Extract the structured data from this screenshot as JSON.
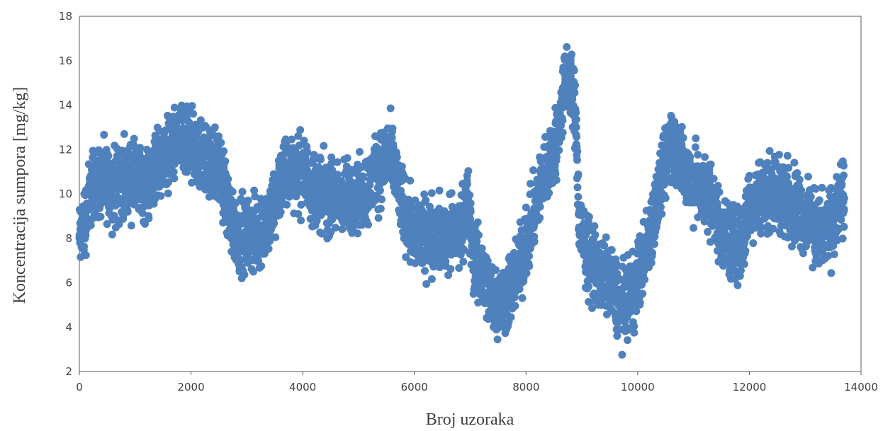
{
  "chart_data": {
    "type": "scatter",
    "title": "",
    "xlabel": "Broj uzoraka",
    "ylabel": "Koncentracija sumpora [mg/kg]",
    "xlim": [
      0,
      14000
    ],
    "ylim": [
      2,
      18
    ],
    "xticks": [
      0,
      2000,
      4000,
      6000,
      8000,
      10000,
      12000,
      14000
    ],
    "yticks": [
      2,
      4,
      6,
      8,
      10,
      12,
      14,
      16,
      18
    ],
    "xtick_labels": [
      "0",
      "2000",
      "4000",
      "6000",
      "8000",
      "10000",
      "12000",
      "14000"
    ],
    "ytick_labels": [
      "2",
      "4",
      "6",
      "8",
      "10",
      "12",
      "14",
      "16",
      "18"
    ],
    "grid": false,
    "legend": "none",
    "marker_color": "#4F81BD",
    "series": [
      {
        "x": [
          0,
          100,
          200,
          300,
          400,
          600,
          800,
          1000,
          1200,
          1400,
          1600,
          1800,
          2000,
          2200,
          2350,
          2500,
          2700,
          2850,
          3000,
          3200,
          3400,
          3600,
          3800,
          4000,
          4200,
          4400,
          4600,
          4800,
          5000,
          5200,
          5400,
          5550,
          5700,
          5850,
          6000,
          6200,
          6400,
          6600,
          6800,
          6950,
          7050,
          7200,
          7350,
          7500,
          7650,
          7800,
          7950,
          8100,
          8250,
          8400,
          8550,
          8700,
          8800,
          8900,
          8950,
          9000,
          9100,
          9300,
          9500,
          9700,
          9800,
          9900,
          10000,
          10150,
          10300,
          10450,
          10600,
          10700,
          10900,
          11100,
          11300,
          11500,
          11700,
          11850,
          12000,
          12200,
          12400,
          12600,
          12800,
          13000,
          13200,
          13400,
          13550,
          13700
        ],
        "y": [
          8.0,
          8.8,
          10.2,
          10.6,
          10.5,
          10.3,
          10.6,
          10.6,
          10.3,
          11.4,
          12.0,
          12.3,
          12.0,
          11.6,
          11.4,
          11.3,
          9.0,
          8.2,
          8.1,
          8.2,
          8.7,
          10.6,
          11.2,
          10.9,
          10.3,
          9.9,
          9.8,
          9.8,
          9.8,
          10.4,
          11.3,
          11.8,
          10.5,
          8.9,
          8.3,
          8.1,
          8.2,
          8.1,
          8.2,
          9.8,
          7.2,
          6.4,
          5.6,
          5.2,
          5.4,
          6.2,
          7.3,
          8.5,
          10.3,
          11.4,
          12.3,
          15.0,
          15.3,
          13.0,
          8.5,
          8.2,
          7.3,
          6.5,
          6.1,
          5.0,
          5.2,
          5.5,
          6.1,
          7.5,
          9.2,
          10.7,
          12.6,
          11.8,
          10.8,
          10.2,
          10.0,
          8.3,
          7.8,
          7.6,
          9.5,
          10.0,
          10.1,
          10.0,
          9.6,
          8.9,
          8.4,
          8.3,
          9.1,
          9.8
        ]
      }
    ]
  }
}
